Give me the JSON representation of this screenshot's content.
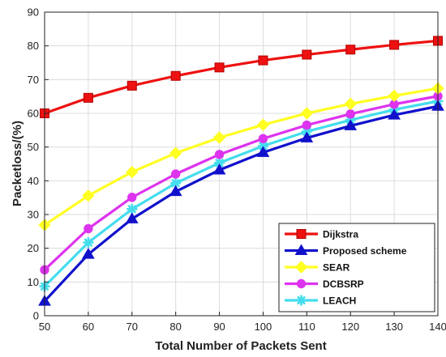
{
  "chart_data": {
    "type": "line",
    "title": "",
    "xlabel": "Total Number of Packets Sent",
    "ylabel": "Packetloss/(%)",
    "x": [
      50,
      60,
      70,
      80,
      90,
      100,
      110,
      120,
      130,
      140
    ],
    "xlim": [
      50,
      140
    ],
    "ylim": [
      0,
      90
    ],
    "xticks": [
      50,
      60,
      70,
      80,
      90,
      100,
      110,
      120,
      130,
      140
    ],
    "yticks": [
      0,
      10,
      20,
      30,
      40,
      50,
      60,
      70,
      80,
      90
    ],
    "grid": true,
    "legend_position": "bottom-right",
    "series": [
      {
        "name": "Dijkstra",
        "color": "#ee1111",
        "marker": "square",
        "values": [
          60.0,
          64.6,
          68.2,
          71.1,
          73.6,
          75.7,
          77.4,
          78.9,
          80.3,
          81.5
        ]
      },
      {
        "name": "Proposed scheme",
        "color": "#1111cc",
        "marker": "triangle",
        "values": [
          4.3,
          18.2,
          28.7,
          36.8,
          43.2,
          48.4,
          52.7,
          56.3,
          59.5,
          62.1
        ]
      },
      {
        "name": "SEAR",
        "color": "#ffff22",
        "marker": "diamond",
        "values": [
          26.9,
          35.6,
          42.6,
          48.2,
          52.8,
          56.6,
          60.0,
          62.8,
          65.2,
          67.4
        ]
      },
      {
        "name": "DCBSRP",
        "color": "#dd33ee",
        "marker": "circle",
        "values": [
          13.6,
          25.8,
          35.1,
          42.0,
          47.8,
          52.5,
          56.5,
          59.8,
          62.7,
          65.1
        ]
      },
      {
        "name": "LEACH",
        "color": "#44ddee",
        "marker": "star",
        "values": [
          8.7,
          21.7,
          31.6,
          39.3,
          45.3,
          50.3,
          54.6,
          58.0,
          61.1,
          63.6
        ]
      }
    ]
  }
}
